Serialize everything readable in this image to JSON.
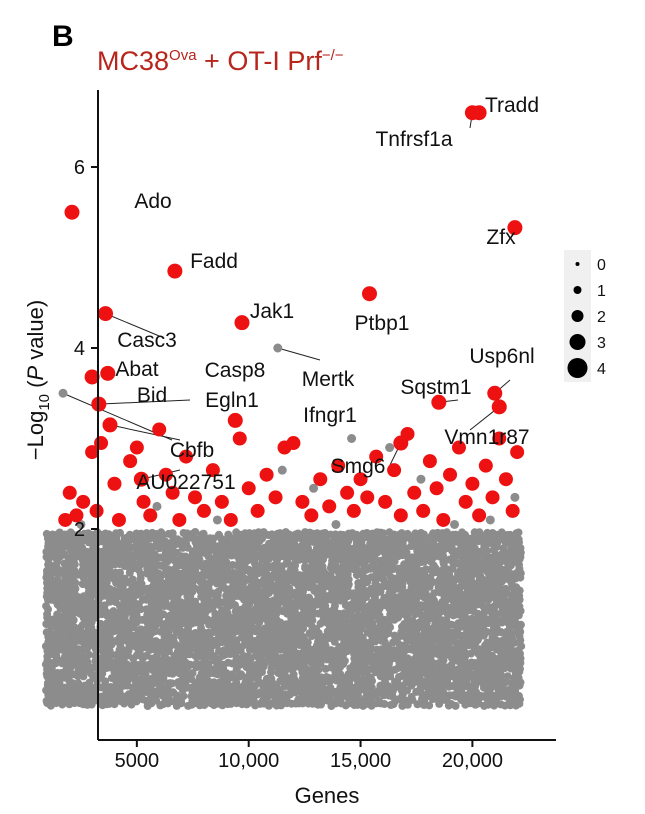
{
  "panel_label": "B",
  "chart_data": {
    "type": "scatter",
    "title": {
      "base": "MC38",
      "sup1": "Ova",
      "mid": " + OT-I Prf",
      "sup2": "−/−"
    },
    "xlabel": "Genes",
    "ylabel": {
      "pre": "−Log",
      "sub": "10",
      "mid": " (",
      "italic": "P",
      "post": " value)"
    },
    "x_ticks": [
      {
        "value": 5000,
        "label": "5000"
      },
      {
        "value": 10000,
        "label": "10,000"
      },
      {
        "value": 15000,
        "label": "15,000"
      },
      {
        "value": 20000,
        "label": "20,000"
      }
    ],
    "y_ticks": [
      {
        "value": 2,
        "label": "2"
      },
      {
        "value": 4,
        "label": "4"
      },
      {
        "value": 6,
        "label": "6"
      }
    ],
    "xlim": [
      0,
      22600
    ],
    "ylim": [
      0,
      7.0
    ],
    "colors": {
      "significant": "#ee1111",
      "background": "#8c8c8c",
      "title": "#b8251c"
    },
    "legend": {
      "position": "right",
      "entries": [
        {
          "size": 0,
          "label": "0"
        },
        {
          "size": 1,
          "label": "1"
        },
        {
          "size": 2,
          "label": "2"
        },
        {
          "size": 3,
          "label": "3"
        },
        {
          "size": 4,
          "label": "4"
        }
      ]
    },
    "background_cloud": {
      "x_range": [
        1000,
        22300
      ],
      "y_range": [
        0.05,
        1.95
      ],
      "approx_points": 22000
    },
    "labeled_genes": [
      {
        "name": "Tradd",
        "x": 20300,
        "y": 6.6,
        "color": "red"
      },
      {
        "name": "Tnfrsf1a",
        "x": 20000,
        "y": 6.6,
        "color": "red"
      },
      {
        "name": "Ado",
        "x": 2100,
        "y": 5.5,
        "color": "red"
      },
      {
        "name": "Zfx",
        "x": 21900,
        "y": 5.33,
        "color": "red"
      },
      {
        "name": "Fadd",
        "x": 6700,
        "y": 4.85,
        "color": "red"
      },
      {
        "name": "Ptbp1",
        "x": 15400,
        "y": 4.6,
        "color": "red"
      },
      {
        "name": "Jak1",
        "x": 9700,
        "y": 4.28,
        "color": "red"
      },
      {
        "name": "Casc3",
        "x": 3600,
        "y": 4.38,
        "color": "red"
      },
      {
        "name": "Mertk",
        "x": 11300,
        "y": 4.0,
        "color": "grey"
      },
      {
        "name": "Casp8",
        "x": 3700,
        "y": 3.72,
        "color": "red"
      },
      {
        "name": "Abat",
        "x": 3000,
        "y": 3.68,
        "color": "red"
      },
      {
        "name": "Usp6nl",
        "x": 21000,
        "y": 3.5,
        "color": "red"
      },
      {
        "name": "Bid",
        "x": 1700,
        "y": 3.5,
        "color": "grey"
      },
      {
        "name": "Sqstm1",
        "x": 18500,
        "y": 3.4,
        "color": "red"
      },
      {
        "name": "Egln1",
        "x": 3300,
        "y": 3.38,
        "color": "red"
      },
      {
        "name": "Ifngr1",
        "x": 9400,
        "y": 3.2,
        "color": "red"
      },
      {
        "name": "Vmn1r87",
        "x": 21200,
        "y": 3.35,
        "color": "red"
      },
      {
        "name": "Cbfb",
        "x": 3800,
        "y": 3.15,
        "color": "red"
      },
      {
        "name": "Smg6",
        "x": 16800,
        "y": 2.95,
        "color": "red"
      },
      {
        "name": "AU022751",
        "x": 5200,
        "y": 2.55,
        "color": "red"
      }
    ],
    "extra_significant_points": [
      {
        "x": 2000,
        "y": 2.4
      },
      {
        "x": 2300,
        "y": 2.15
      },
      {
        "x": 1800,
        "y": 2.1
      },
      {
        "x": 2600,
        "y": 2.3
      },
      {
        "x": 3000,
        "y": 2.85
      },
      {
        "x": 3400,
        "y": 2.95
      },
      {
        "x": 3200,
        "y": 2.2
      },
      {
        "x": 4000,
        "y": 2.5
      },
      {
        "x": 4200,
        "y": 2.1
      },
      {
        "x": 4700,
        "y": 2.75
      },
      {
        "x": 5000,
        "y": 2.9
      },
      {
        "x": 5300,
        "y": 2.3
      },
      {
        "x": 5600,
        "y": 2.15
      },
      {
        "x": 6000,
        "y": 3.1
      },
      {
        "x": 6300,
        "y": 2.6
      },
      {
        "x": 6600,
        "y": 2.4
      },
      {
        "x": 6900,
        "y": 2.1
      },
      {
        "x": 7200,
        "y": 2.8
      },
      {
        "x": 7600,
        "y": 2.35
      },
      {
        "x": 8000,
        "y": 2.2
      },
      {
        "x": 8400,
        "y": 2.65
      },
      {
        "x": 8800,
        "y": 2.3
      },
      {
        "x": 9200,
        "y": 2.1
      },
      {
        "x": 9600,
        "y": 3.0
      },
      {
        "x": 10000,
        "y": 2.45
      },
      {
        "x": 10400,
        "y": 2.2
      },
      {
        "x": 10800,
        "y": 2.6
      },
      {
        "x": 11200,
        "y": 2.35
      },
      {
        "x": 11600,
        "y": 2.9
      },
      {
        "x": 12000,
        "y": 2.95
      },
      {
        "x": 12400,
        "y": 2.3
      },
      {
        "x": 12800,
        "y": 2.15
      },
      {
        "x": 13200,
        "y": 2.55
      },
      {
        "x": 13600,
        "y": 2.25
      },
      {
        "x": 14000,
        "y": 2.7
      },
      {
        "x": 14400,
        "y": 2.4
      },
      {
        "x": 14700,
        "y": 2.2
      },
      {
        "x": 15000,
        "y": 2.55
      },
      {
        "x": 15300,
        "y": 2.35
      },
      {
        "x": 15700,
        "y": 2.8
      },
      {
        "x": 16100,
        "y": 2.3
      },
      {
        "x": 16500,
        "y": 2.65
      },
      {
        "x": 16800,
        "y": 2.15
      },
      {
        "x": 17100,
        "y": 3.05
      },
      {
        "x": 17400,
        "y": 2.4
      },
      {
        "x": 17800,
        "y": 2.2
      },
      {
        "x": 18100,
        "y": 2.75
      },
      {
        "x": 18400,
        "y": 2.45
      },
      {
        "x": 18700,
        "y": 2.1
      },
      {
        "x": 19000,
        "y": 2.6
      },
      {
        "x": 19400,
        "y": 2.9
      },
      {
        "x": 19700,
        "y": 2.3
      },
      {
        "x": 20000,
        "y": 2.5
      },
      {
        "x": 20300,
        "y": 2.15
      },
      {
        "x": 20600,
        "y": 2.7
      },
      {
        "x": 20900,
        "y": 2.35
      },
      {
        "x": 21200,
        "y": 3.0
      },
      {
        "x": 21500,
        "y": 2.55
      },
      {
        "x": 21800,
        "y": 2.2
      },
      {
        "x": 22000,
        "y": 2.85
      }
    ],
    "extra_grey_points": [
      {
        "x": 2500,
        "y": 2.05
      },
      {
        "x": 5900,
        "y": 2.25
      },
      {
        "x": 8600,
        "y": 2.1
      },
      {
        "x": 11500,
        "y": 2.65
      },
      {
        "x": 13900,
        "y": 2.05
      },
      {
        "x": 14600,
        "y": 3.0
      },
      {
        "x": 16300,
        "y": 2.9
      },
      {
        "x": 17700,
        "y": 2.55
      },
      {
        "x": 19200,
        "y": 2.05
      },
      {
        "x": 20800,
        "y": 2.1
      },
      {
        "x": 21900,
        "y": 2.35
      },
      {
        "x": 12900,
        "y": 2.45
      }
    ]
  }
}
